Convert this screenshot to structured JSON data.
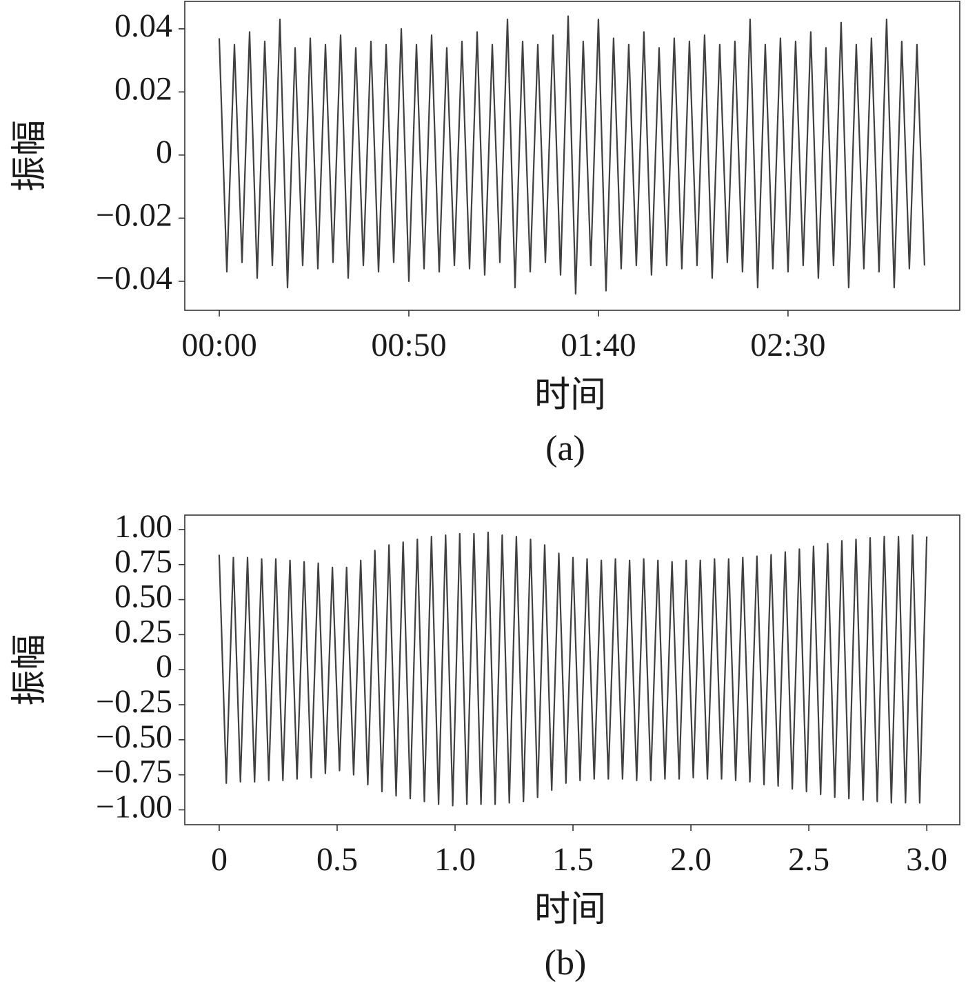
{
  "chart_data": [
    {
      "type": "line",
      "ylabel": "振幅",
      "xlabel": "时间",
      "caption": "(a)",
      "color": "#404040",
      "xlim": [
        -9.1,
        195.3
      ],
      "ylim": [
        -0.0492,
        0.0487
      ],
      "xticks": [
        {
          "value": 0,
          "label": "00:00"
        },
        {
          "value": 50,
          "label": "00:50"
        },
        {
          "value": 100,
          "label": "01:40"
        },
        {
          "value": 150,
          "label": "02:30"
        }
      ],
      "yticks": [
        0.04,
        0.02,
        0,
        {
          "value": -0.02,
          "label": "−0.02"
        },
        {
          "value": -0.04,
          "label": "−0.04"
        }
      ],
      "x": [
        0,
        2,
        4,
        6,
        8,
        10,
        12,
        14,
        16,
        18,
        20,
        22,
        24,
        26,
        28,
        30,
        32,
        34,
        36,
        38,
        40,
        42,
        44,
        46,
        48,
        50,
        52,
        54,
        56,
        58,
        60,
        62,
        64,
        66,
        68,
        70,
        72,
        74,
        76,
        78,
        80,
        82,
        84,
        86,
        88,
        90,
        92,
        94,
        96,
        98,
        100,
        102,
        104,
        106,
        108,
        110,
        112,
        114,
        116,
        118,
        120,
        122,
        124,
        126,
        128,
        130,
        132,
        134,
        136,
        138,
        140,
        142,
        144,
        146,
        148,
        150,
        152,
        154,
        156,
        158,
        160,
        162,
        164,
        166,
        168,
        170,
        172,
        174,
        176,
        178,
        180,
        182,
        184,
        186
      ],
      "values": [
        0.037,
        -0.037,
        0.035,
        -0.034,
        0.039,
        -0.039,
        0.036,
        -0.035,
        0.043,
        -0.042,
        0.034,
        -0.035,
        0.037,
        -0.036,
        0.035,
        -0.034,
        0.038,
        -0.039,
        0.034,
        -0.035,
        0.036,
        -0.037,
        0.035,
        -0.034,
        0.04,
        -0.04,
        0.035,
        -0.036,
        0.038,
        -0.037,
        0.034,
        -0.035,
        0.036,
        -0.036,
        0.039,
        -0.038,
        0.035,
        -0.034,
        0.043,
        -0.042,
        0.036,
        -0.037,
        0.035,
        -0.034,
        0.038,
        -0.038,
        0.044,
        -0.044,
        0.036,
        -0.035,
        0.043,
        -0.043,
        0.037,
        -0.036,
        0.035,
        -0.035,
        0.039,
        -0.038,
        0.034,
        -0.035,
        0.037,
        -0.036,
        0.036,
        -0.035,
        0.038,
        -0.039,
        0.035,
        -0.034,
        0.036,
        -0.037,
        0.043,
        -0.042,
        0.035,
        -0.036,
        0.037,
        -0.037,
        0.036,
        -0.035,
        0.039,
        -0.039,
        0.034,
        -0.035,
        0.042,
        -0.042,
        0.035,
        -0.036,
        0.037,
        -0.037,
        0.043,
        -0.042,
        0.036,
        -0.036,
        0.035,
        -0.035
      ]
    },
    {
      "type": "line",
      "ylabel": "振幅",
      "xlabel": "时间",
      "caption": "(b)",
      "color": "#404040",
      "xlim": [
        -0.146,
        3.14
      ],
      "ylim": [
        -1.106,
        1.103
      ],
      "xticks": [
        0,
        0.5,
        {
          "value": 1,
          "label": "1.0"
        },
        1.5,
        {
          "value": 2,
          "label": "2.0"
        },
        2.5,
        {
          "value": 3,
          "label": "3.0"
        }
      ],
      "yticks": [
        {
          "value": 1,
          "label": "1.00"
        },
        0.75,
        {
          "value": 0.5,
          "label": "0.50"
        },
        0.25,
        0,
        {
          "value": -0.25,
          "label": "−0.25"
        },
        {
          "value": -0.5,
          "label": "−0.50"
        },
        {
          "value": -0.75,
          "label": "−0.75"
        },
        {
          "value": -1,
          "label": "−1.00"
        }
      ],
      "x": [
        0,
        0.03,
        0.06,
        0.09,
        0.12,
        0.15,
        0.18,
        0.21,
        0.24,
        0.27,
        0.3,
        0.33,
        0.36,
        0.39,
        0.42,
        0.45,
        0.48,
        0.51,
        0.54,
        0.57,
        0.6,
        0.63,
        0.66,
        0.69,
        0.72,
        0.75,
        0.78,
        0.81,
        0.84,
        0.87,
        0.9,
        0.93,
        0.96,
        0.99,
        1.02,
        1.05,
        1.08,
        1.11,
        1.14,
        1.17,
        1.2,
        1.23,
        1.26,
        1.29,
        1.32,
        1.35,
        1.38,
        1.41,
        1.44,
        1.47,
        1.5,
        1.53,
        1.56,
        1.59,
        1.62,
        1.65,
        1.68,
        1.71,
        1.74,
        1.77,
        1.8,
        1.83,
        1.86,
        1.89,
        1.92,
        1.95,
        1.98,
        2.01,
        2.04,
        2.07,
        2.1,
        2.13,
        2.16,
        2.19,
        2.22,
        2.25,
        2.28,
        2.31,
        2.34,
        2.37,
        2.4,
        2.43,
        2.46,
        2.49,
        2.52,
        2.55,
        2.58,
        2.61,
        2.64,
        2.67,
        2.7,
        2.73,
        2.76,
        2.79,
        2.82,
        2.85,
        2.88,
        2.91,
        2.94,
        2.97,
        3.0
      ],
      "values": [
        0.82,
        -0.81,
        0.8,
        -0.8,
        0.8,
        -0.8,
        0.79,
        -0.79,
        0.79,
        -0.79,
        0.78,
        -0.78,
        0.77,
        -0.77,
        0.76,
        -0.74,
        0.73,
        -0.72,
        0.73,
        -0.75,
        0.78,
        -0.82,
        0.85,
        -0.87,
        0.89,
        -0.9,
        0.91,
        -0.92,
        0.93,
        -0.94,
        0.95,
        -0.96,
        0.96,
        -0.97,
        0.97,
        -0.96,
        0.97,
        -0.96,
        0.98,
        -0.96,
        0.96,
        -0.95,
        0.95,
        -0.94,
        0.93,
        -0.91,
        0.89,
        -0.86,
        0.83,
        -0.81,
        0.8,
        -0.79,
        0.79,
        -0.78,
        0.78,
        -0.78,
        0.79,
        -0.78,
        0.78,
        -0.79,
        0.79,
        -0.79,
        0.78,
        -0.78,
        0.77,
        -0.78,
        0.78,
        -0.77,
        0.78,
        -0.78,
        0.79,
        -0.78,
        0.79,
        -0.79,
        0.8,
        -0.8,
        0.81,
        -0.82,
        0.82,
        -0.83,
        0.84,
        -0.85,
        0.86,
        -0.87,
        0.88,
        -0.89,
        0.9,
        -0.91,
        0.92,
        -0.92,
        0.93,
        -0.93,
        0.94,
        -0.94,
        0.95,
        -0.95,
        0.95,
        -0.95,
        0.96,
        -0.95,
        0.95
      ]
    }
  ]
}
